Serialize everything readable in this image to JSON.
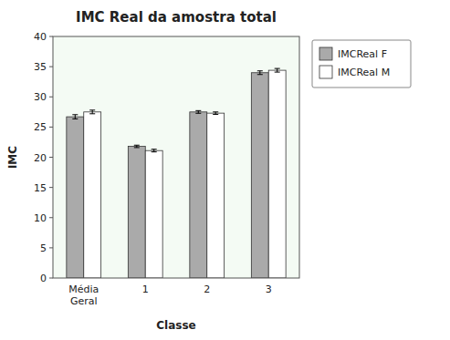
{
  "chart_data": {
    "type": "bar",
    "title": "IMC Real da amostra total",
    "xlabel": "Classe",
    "ylabel": "IMC",
    "categories": [
      "Média\nGeral",
      "1",
      "2",
      "3"
    ],
    "series": [
      {
        "name": "IMCReal F",
        "color": "#aaaaaa",
        "values": [
          26.7,
          21.8,
          27.5,
          34.0
        ],
        "errors": [
          0.35,
          0.2,
          0.22,
          0.3
        ]
      },
      {
        "name": "IMCReal M",
        "color": "#ffffff",
        "values": [
          27.5,
          21.1,
          27.3,
          34.4
        ],
        "errors": [
          0.3,
          0.22,
          0.2,
          0.3
        ]
      }
    ],
    "ylim": [
      0,
      40
    ],
    "yticks": [
      0,
      5,
      10,
      15,
      20,
      25,
      30,
      35,
      40
    ],
    "grid": false,
    "legend": "right"
  }
}
